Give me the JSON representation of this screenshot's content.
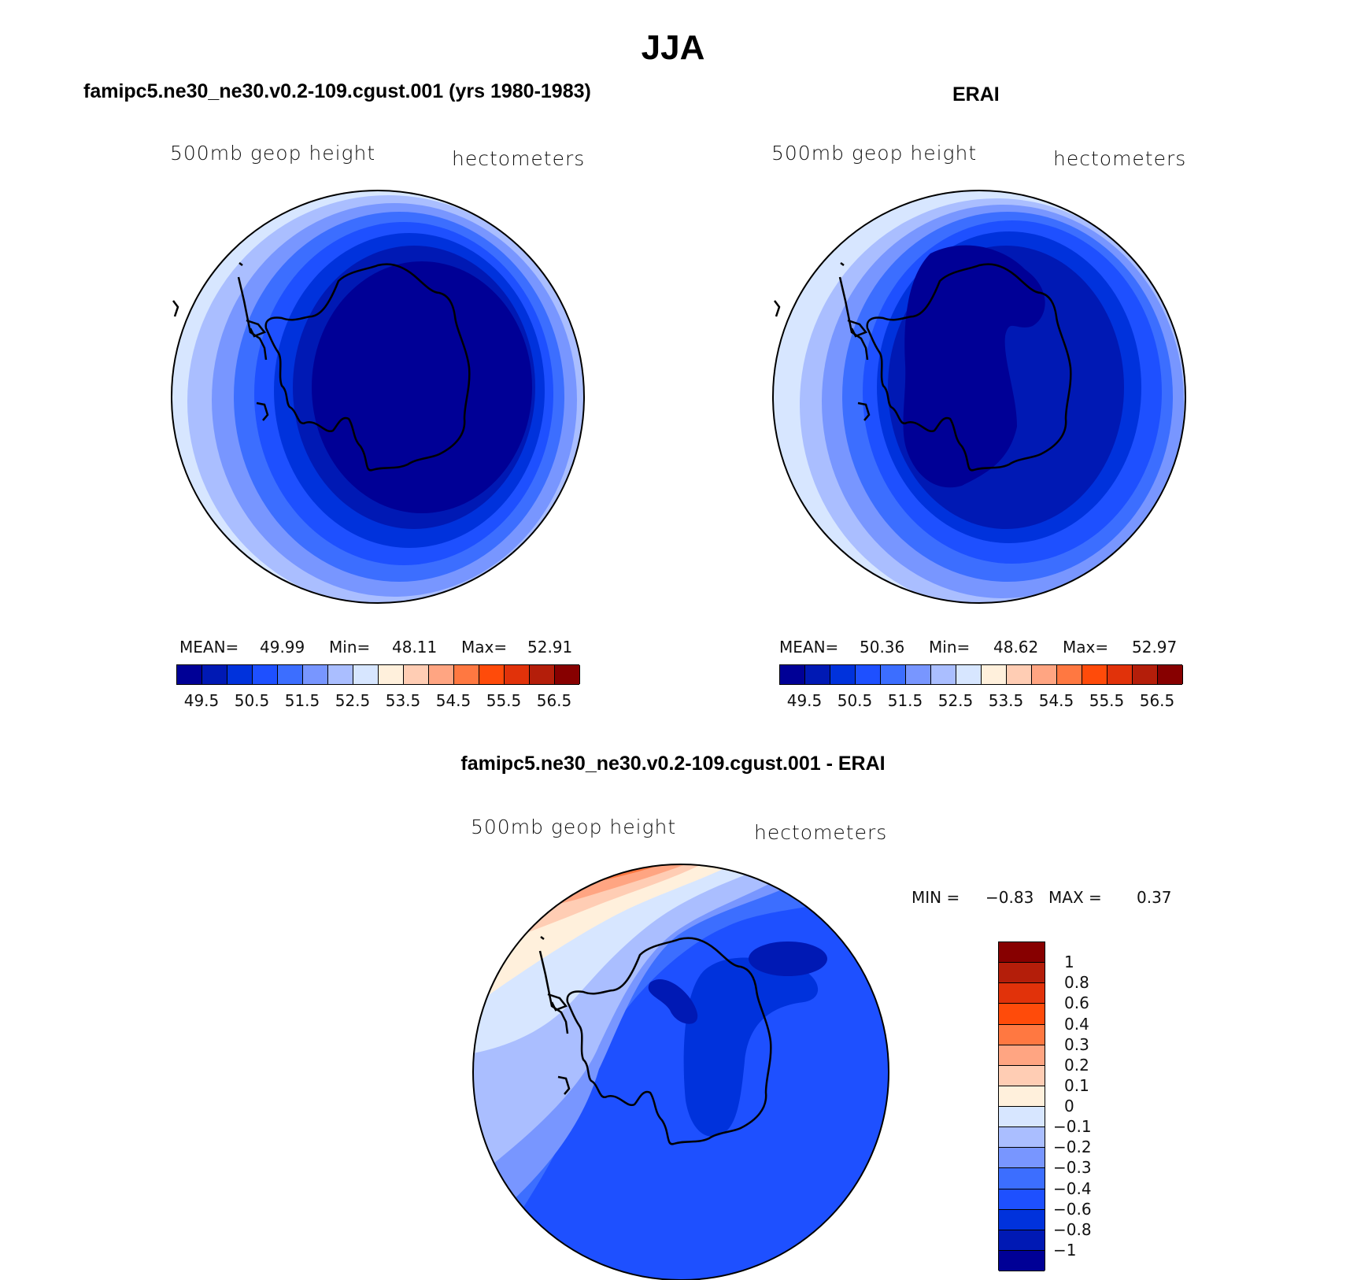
{
  "page_title": "JJA",
  "colors": {
    "levels": [
      "#000096",
      "#0019b4",
      "#0032dc",
      "#1e50ff",
      "#3c6eff",
      "#7896ff",
      "#aabeff",
      "#d7e6ff",
      "#fff0dc",
      "#ffcdb4",
      "#ffa582",
      "#ff7841",
      "#ff4b0a",
      "#e1320a",
      "#b41e0a",
      "#870000"
    ],
    "diff_levels": [
      "#000096",
      "#0019b4",
      "#0032dc",
      "#1e50ff",
      "#3c6eff",
      "#7896ff",
      "#aabeff",
      "#d7e6ff",
      "#fff0dc",
      "#ffcdb4",
      "#ffa582",
      "#ff7841",
      "#ff4b0a",
      "#e1320a",
      "#b41e0a",
      "#870000"
    ]
  },
  "panels": [
    {
      "title": "famipc5.ne30_ne30.v0.2-109.cgust.001 (yrs 1980-1983)",
      "variable": "500mb  geop  height",
      "units": "hectometers",
      "stats": {
        "mean_label": "MEAN=",
        "mean": "49.99",
        "min_label": "Min=",
        "min": "48.11",
        "max_label": "Max=",
        "max": "52.91"
      },
      "colorbar_labels": [
        "49.5",
        "50.5",
        "51.5",
        "52.5",
        "53.5",
        "54.5",
        "55.5",
        "56.5"
      ]
    },
    {
      "title": "ERAI",
      "variable": "500mb  geop  height",
      "units": "hectometers",
      "stats": {
        "mean_label": "MEAN=",
        "mean": "50.36",
        "min_label": "Min=",
        "min": "48.62",
        "max_label": "Max=",
        "max": "52.97"
      },
      "colorbar_labels": [
        "49.5",
        "50.5",
        "51.5",
        "52.5",
        "53.5",
        "54.5",
        "55.5",
        "56.5"
      ]
    },
    {
      "title": "famipc5.ne30_ne30.v0.2-109.cgust.001 - ERAI",
      "variable": "500mb  geop  height",
      "units": "hectometers",
      "stats": {
        "min_label": "MIN =",
        "min": "−0.83",
        "max_label": "MAX =",
        "max": "0.37"
      },
      "colorbar_labels": [
        "1",
        "0.8",
        "0.6",
        "0.4",
        "0.3",
        "0.2",
        "0.1",
        "0",
        "−0.1",
        "−0.2",
        "−0.3",
        "−0.4",
        "−0.6",
        "−0.8",
        "−1"
      ]
    }
  ]
}
